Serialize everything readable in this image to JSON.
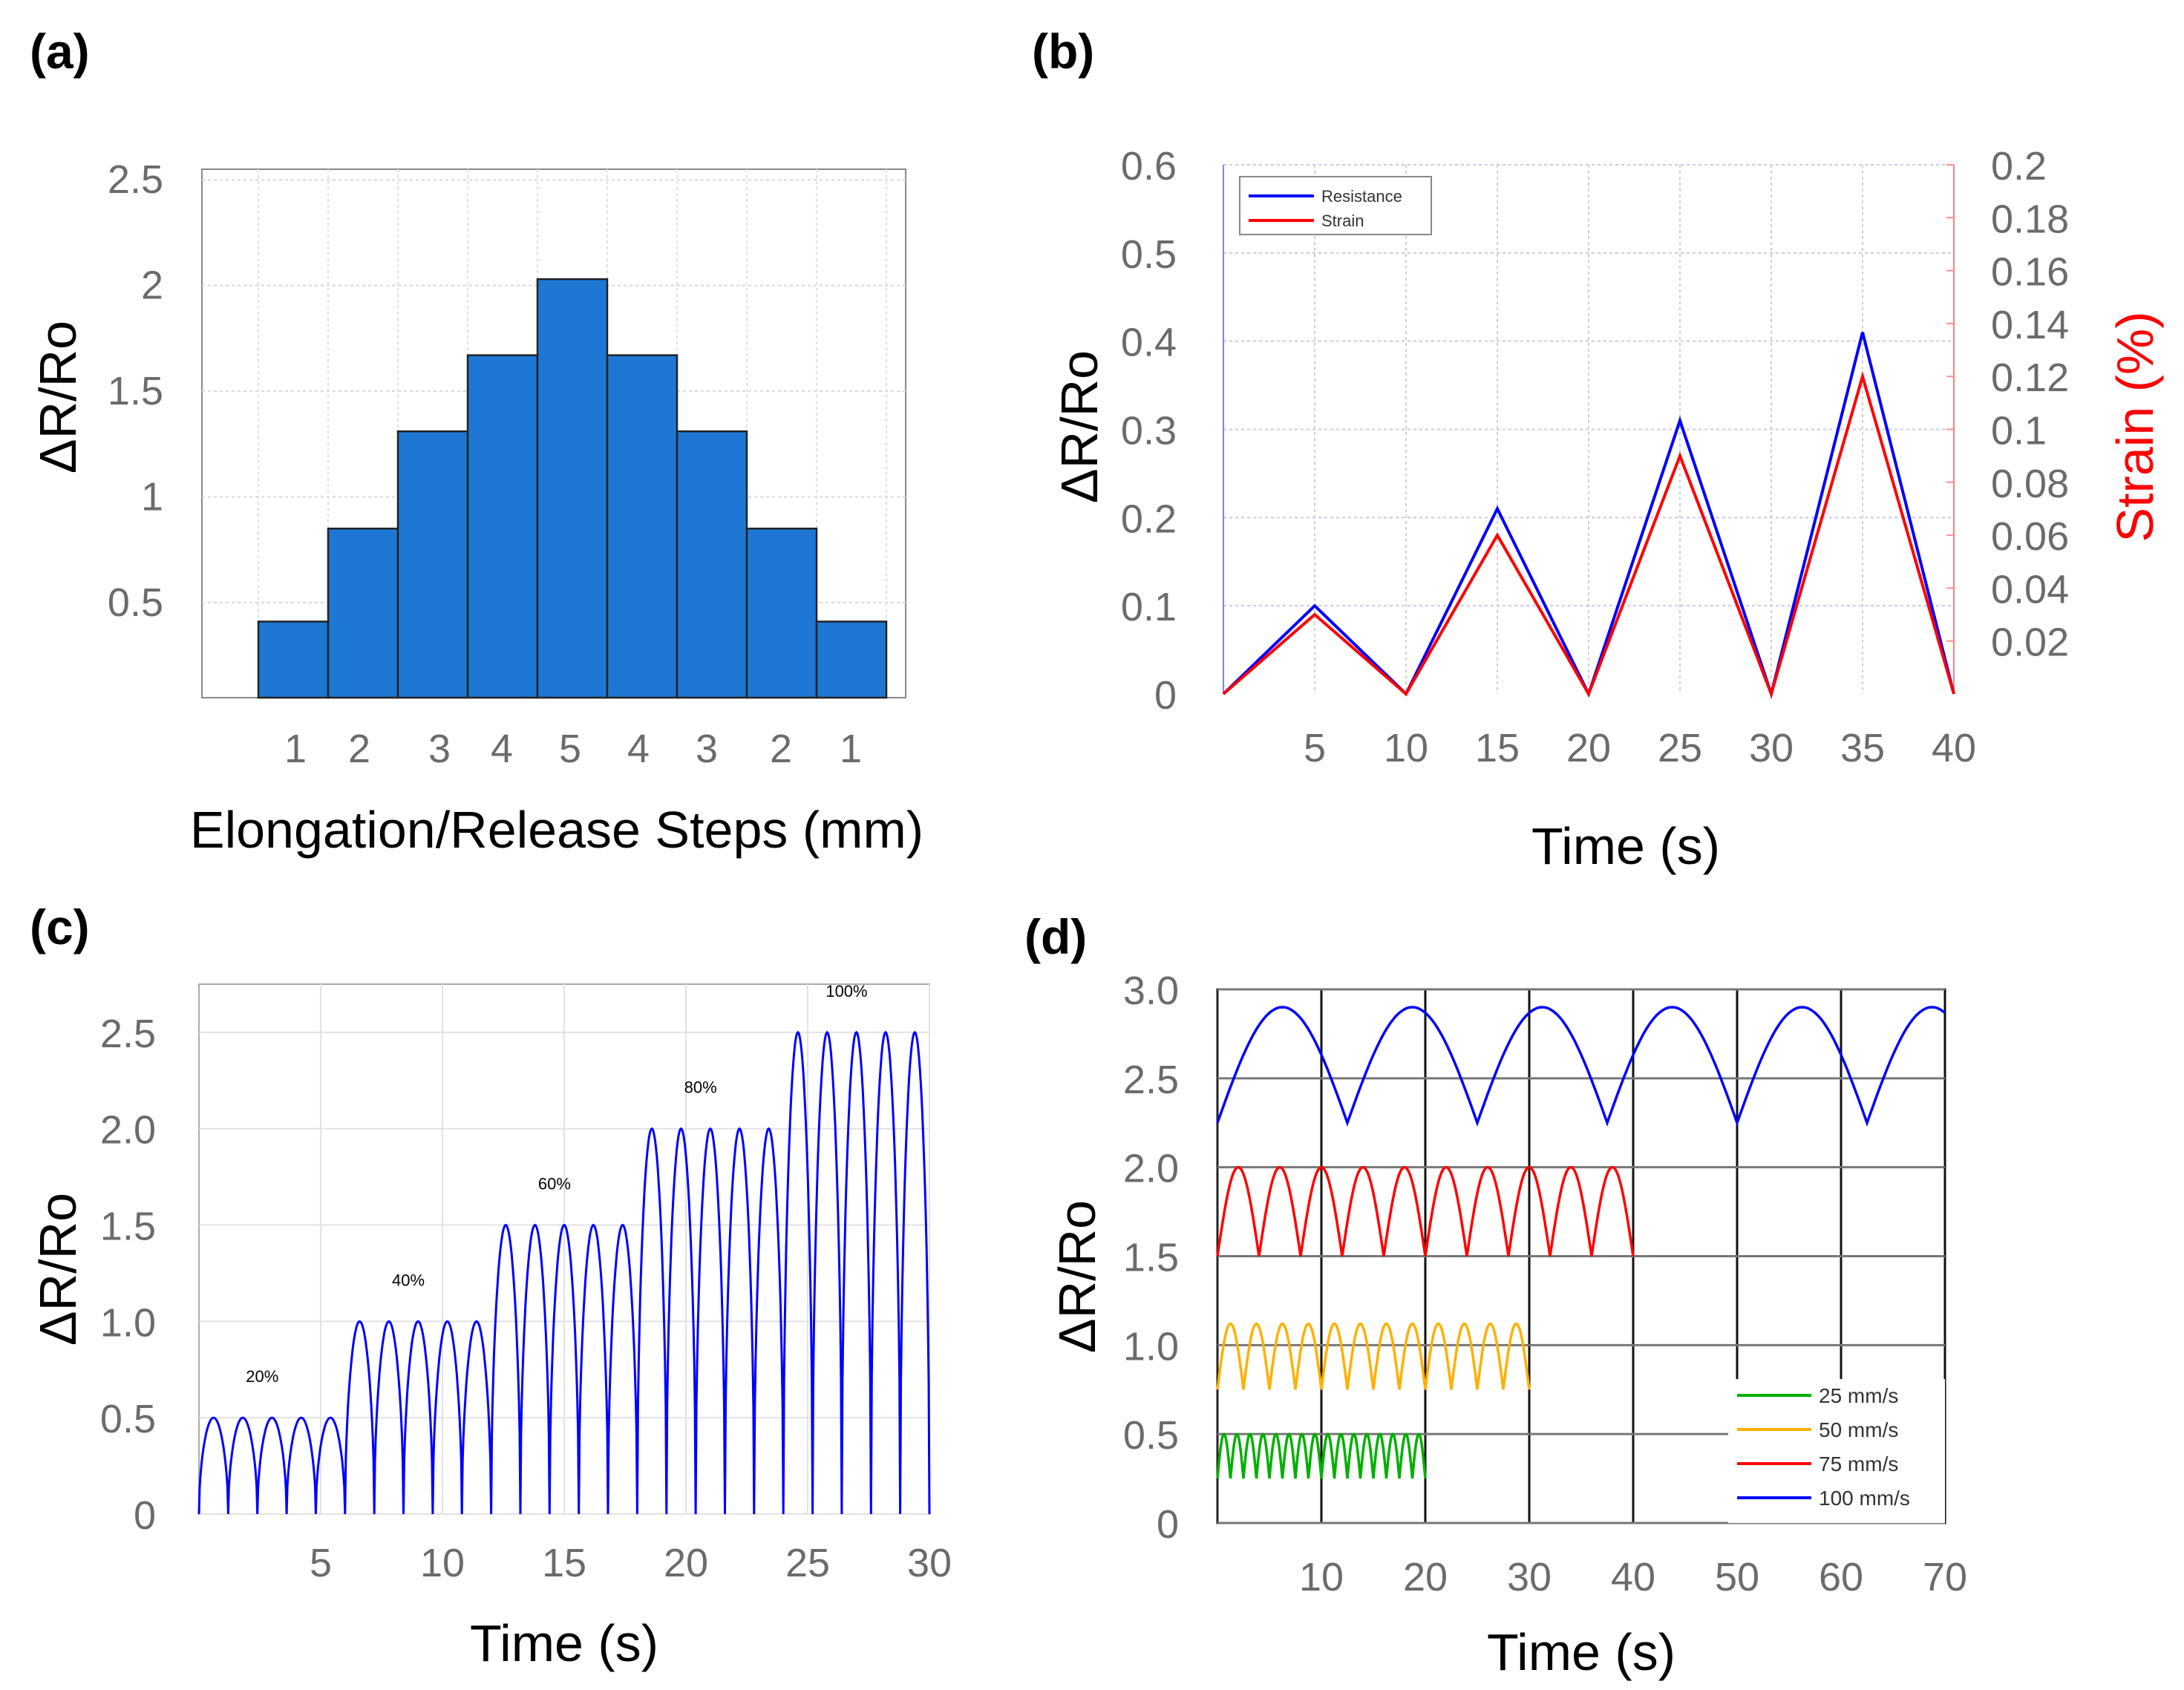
{
  "chart_data": [
    {
      "panel": "(a)",
      "type": "bar",
      "categories": [
        "1",
        "2",
        "3",
        "4",
        "5",
        "4",
        "3",
        "2",
        "1"
      ],
      "values": [
        0.41,
        0.85,
        1.31,
        1.67,
        2.03,
        1.67,
        1.31,
        0.85,
        0.41
      ],
      "ylabel": "ΔR/Ro",
      "xlabel": "Elongation/Release Steps (mm)",
      "yticks": [
        "0.5",
        "1",
        "1.5",
        "2",
        "2.5"
      ],
      "ylim": [
        0.05,
        2.55
      ],
      "grid": true,
      "bar_color": "#1f77d4"
    },
    {
      "panel": "(b)",
      "type": "line",
      "xlabel": "Time (s)",
      "ylabel": "ΔR/Ro",
      "ylabel_right": "Strain (%)",
      "xticks": [
        "5",
        "10",
        "15",
        "20",
        "25",
        "30",
        "35",
        "40"
      ],
      "yticks": [
        "0",
        "0.1",
        "0.2",
        "0.3",
        "0.4",
        "0.5",
        "0.6"
      ],
      "yticks_right": [
        "0.02",
        "0.04",
        "0.06",
        "0.08",
        "0.1",
        "0.12",
        "0.14",
        "0.16",
        "0.18",
        "0.2"
      ],
      "xlim": [
        0,
        40
      ],
      "ylim": [
        0,
        0.6
      ],
      "ylim_right": [
        0,
        0.2
      ],
      "series": [
        {
          "name": "Resistance",
          "color": "#0000ff",
          "x": [
            0,
            5,
            10,
            15,
            20,
            25,
            30,
            35,
            40
          ],
          "y": [
            0,
            0.1,
            0,
            0.21,
            0,
            0.31,
            0,
            0.41,
            0
          ]
        },
        {
          "name": "Strain",
          "color": "#ff0000",
          "x": [
            0,
            5,
            10,
            15,
            20,
            25,
            30,
            35,
            40
          ],
          "y": [
            0,
            0.03,
            0,
            0.06,
            0,
            0.09,
            0,
            0.12,
            0
          ],
          "axis": "right"
        }
      ],
      "legend": [
        "Resistance",
        "Strain"
      ]
    },
    {
      "panel": "(c)",
      "type": "line",
      "xlabel": "Time (s)",
      "ylabel": "ΔR/Ro",
      "xticks": [
        "5",
        "10",
        "15",
        "20",
        "25",
        "30"
      ],
      "yticks": [
        "0",
        "0.5",
        "1.0",
        "1.5",
        "2.0",
        "2.5"
      ],
      "xlim": [
        0,
        30
      ],
      "ylim": [
        0,
        2.75
      ],
      "series": [
        {
          "name": "ΔR/Ro",
          "color": "#0000ff",
          "levels": [
            0.5,
            1.0,
            1.5,
            2.0,
            2.5
          ],
          "cycles_per_level": 5,
          "level_duration": 6
        }
      ],
      "annotations": [
        "20%",
        "40%",
        "60%",
        "80%",
        "100%"
      ]
    },
    {
      "panel": "(d)",
      "type": "line",
      "xlabel": "Time (s)",
      "ylabel": "ΔR/Ro",
      "xticks": [
        "10",
        "20",
        "30",
        "40",
        "50",
        "60",
        "70"
      ],
      "yticks": [
        "0",
        "0.5",
        "1.0",
        "1.5",
        "2.0",
        "2.5",
        "3.0"
      ],
      "xlim": [
        0,
        70
      ],
      "ylim": [
        0,
        3.0
      ],
      "series": [
        {
          "name": "25 mm/s",
          "color": "#00b000",
          "t_end": 20,
          "base": 0.25,
          "peak": 0.5,
          "cycles": 16
        },
        {
          "name": "50 mm/s",
          "color": "#ffb000",
          "t_end": 30,
          "base": 0.75,
          "peak": 1.12,
          "cycles": 12
        },
        {
          "name": "75 mm/s",
          "color": "#ff0000",
          "t_end": 40,
          "base": 1.5,
          "peak": 2.0,
          "cycles": 10
        },
        {
          "name": "100 mm/s",
          "color": "#0000ff",
          "t_end": 70,
          "base": 2.25,
          "peak": 2.9,
          "cycles": 5.6
        }
      ],
      "legend": [
        "25 mm/s",
        "50 mm/s",
        "75 mm/s",
        "100 mm/s"
      ]
    }
  ]
}
